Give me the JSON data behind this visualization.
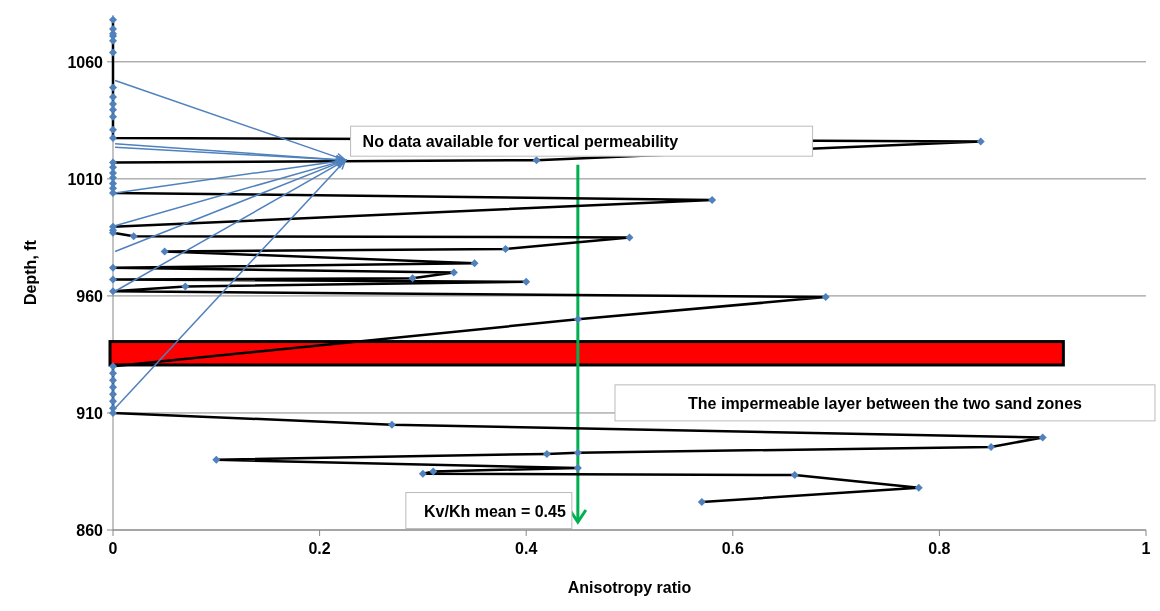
{
  "chart_data": {
    "type": "line",
    "xlabel": "Anisotropy ratio",
    "ylabel": "Depth, ft",
    "xlim": [
      0,
      1
    ],
    "xticks": [
      0,
      0.2,
      0.4,
      0.6,
      0.8,
      1
    ],
    "ylim": [
      860,
      1080
    ],
    "yticks": [
      860,
      910,
      960,
      1010,
      1060
    ],
    "grid": "y",
    "marker": "diamond",
    "line_style": "solid",
    "series": [
      {
        "color": "#000000",
        "x": [
          0,
          0,
          0,
          0,
          0,
          0,
          0,
          0,
          0,
          0,
          0,
          0,
          0,
          0.84,
          0.41,
          0,
          0,
          0,
          0,
          0,
          0,
          0,
          0.58,
          0,
          0,
          0,
          0.02,
          0.5,
          0.38,
          0.05,
          0.35,
          0,
          0.33,
          0.29,
          0,
          0.4,
          0.07,
          0,
          0.69,
          0.45,
          0,
          0,
          0,
          0,
          0,
          0,
          0,
          0,
          0.27,
          0.9,
          0.85,
          0.45,
          0.42,
          0.1,
          0.45,
          0.31,
          0.3,
          0.66,
          0.78,
          0.57
        ],
        "values": [
          1078,
          1074,
          1072,
          1071,
          1069,
          1064,
          1049,
          1045,
          1042,
          1039.5,
          1036.5,
          1031,
          1027.5,
          1026,
          1018,
          1017,
          1015,
          1012.5,
          1010.5,
          1008,
          1006,
          1004,
          1001,
          989.5,
          988,
          987,
          985.5,
          985,
          980,
          979,
          974,
          972,
          970,
          967.5,
          967,
          966,
          964,
          962,
          959.5,
          950,
          930,
          927,
          924,
          921,
          918,
          915,
          912,
          910,
          905,
          899.5,
          895.5,
          893,
          892.5,
          890,
          886.5,
          885,
          884,
          883.5,
          878,
          872
        ]
      }
    ],
    "bands": [
      {
        "axis": "y",
        "from": 930.5,
        "to": 940.5,
        "color": "#ff0000",
        "label": "The impermeable layer between the two sand zones"
      }
    ],
    "ref_lines": [
      {
        "axis": "x",
        "value": 0.45,
        "label": "Kv/Kh mean = 0.45",
        "color": "#00b050"
      }
    ],
    "annotations": [
      {
        "text": "No data available for vertical permeability",
        "x": 0,
        "y": 1027.5
      }
    ]
  }
}
